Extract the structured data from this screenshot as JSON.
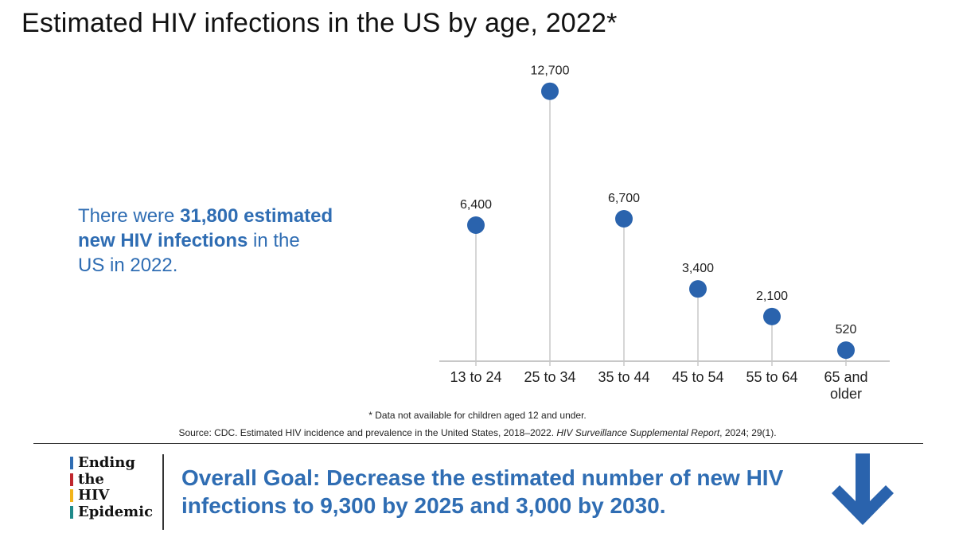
{
  "title": "Estimated HIV infections in the US by age, 2022*",
  "summary": {
    "prefix": "There were ",
    "highlight1": "31,800 estimated",
    "highlight2": "new HIV infections",
    "suffix1": " in the",
    "suffix2": "US in 2022."
  },
  "chart_data": {
    "type": "lollipop",
    "categories": [
      "13 to 24",
      "25 to 34",
      "35 to 44",
      "45 to 54",
      "55 to 64",
      "65 and older"
    ],
    "category_lines": [
      [
        "13 to 24"
      ],
      [
        "25 to 34"
      ],
      [
        "35 to 44"
      ],
      [
        "45 to 54"
      ],
      [
        "55 to 64"
      ],
      [
        "65 and",
        "older"
      ]
    ],
    "values": [
      6400,
      12700,
      6700,
      3400,
      2100,
      520
    ],
    "value_labels": [
      "6,400",
      "12,700",
      "6,700",
      "3,400",
      "2,100",
      "520"
    ],
    "ylim": [
      0,
      13700
    ],
    "title": "Estimated HIV infections in the US by age, 2022*",
    "xlabel": "",
    "ylabel": "",
    "grid": false
  },
  "footnote": "* Data not available for children aged 12 and under.",
  "source": {
    "prefix": "Source: CDC. Estimated HIV incidence and prevalence in the United States, 2018–2022. ",
    "journal": "HIV Surveillance Supplemental Report",
    "suffix": ", 2024; 29(1)."
  },
  "logo": {
    "lines": [
      "Ending",
      "the",
      "HIV",
      "Epidemic"
    ],
    "bar_colors": [
      "#2f6db3",
      "#c0272d",
      "#f2b41a",
      "#1f8a8a"
    ]
  },
  "goal": {
    "label": "Overall Goal:",
    "text": " Decrease the estimated number of new HIV infections to 9,300 by 2025 and 3,000 by 2030."
  },
  "colors": {
    "accent": "#2f6db3",
    "dot": "#2a63ad",
    "stem": "#c8c8c8",
    "arrow": "#2a63ad"
  },
  "icons": {
    "goal_arrow": "down-arrow-icon"
  }
}
